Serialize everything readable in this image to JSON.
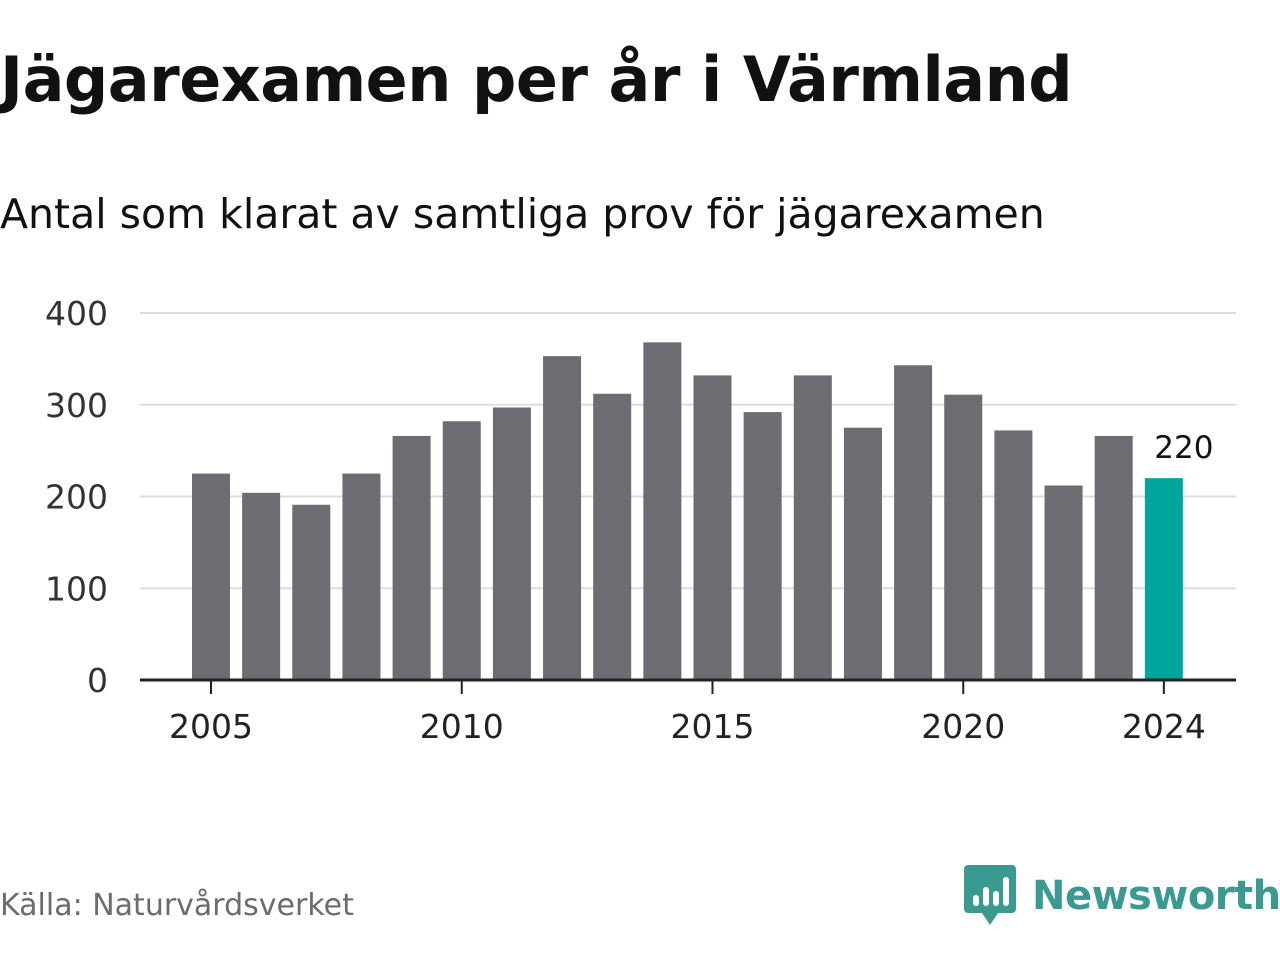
{
  "title": "Jägarexamen per år i Värmland",
  "subtitle": "Antal som klarat av samtliga prov för jägarexamen",
  "source": "Källa: Naturvårdsverket",
  "brand": "Newsworthy",
  "colors": {
    "bar": "#6d6c72",
    "highlight": "#00a69c",
    "grid": "#dddddd",
    "axis": "#222222",
    "brand": "#3a9a92"
  },
  "chart_data": {
    "type": "bar",
    "title": "Jägarexamen per år i Värmland",
    "subtitle": "Antal som klarat av samtliga prov för jägarexamen",
    "xlabel": "",
    "ylabel": "",
    "x": [
      2005,
      2006,
      2007,
      2008,
      2009,
      2010,
      2011,
      2012,
      2013,
      2014,
      2015,
      2016,
      2017,
      2018,
      2019,
      2020,
      2021,
      2022,
      2023,
      2024
    ],
    "values": [
      225,
      204,
      191,
      225,
      266,
      282,
      297,
      353,
      312,
      368,
      332,
      292,
      332,
      275,
      343,
      311,
      272,
      212,
      266,
      220
    ],
    "x_ticks": [
      "2005",
      "2010",
      "2015",
      "2020",
      "2024"
    ],
    "y_ticks": [
      "0",
      "100",
      "200",
      "300",
      "400"
    ],
    "ylim": [
      0,
      400
    ],
    "grid": true,
    "highlight": {
      "x": 2024,
      "label": "220"
    }
  }
}
